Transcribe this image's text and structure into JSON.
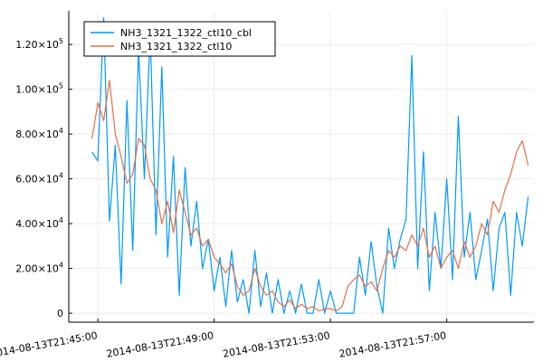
{
  "chart_data": {
    "type": "line",
    "title": "",
    "xlabel": "",
    "ylabel": "",
    "x_axis": {
      "type": "datetime",
      "min": "2014-08-13T21:44:00",
      "max": "2014-08-13T22:00:00",
      "ticks": [
        {
          "value": "2014-08-13T21:45:00",
          "label": "2014-08-13T21:45:00"
        },
        {
          "value": "2014-08-13T21:49:00",
          "label": "2014-08-13T21:49:00"
        },
        {
          "value": "2014-08-13T21:53:00",
          "label": "2014-08-13T21:53:00"
        },
        {
          "value": "2014-08-13T21:57:00",
          "label": "2014-08-13T21:57:00"
        }
      ]
    },
    "y_axis": {
      "min": -4000,
      "max": 135000,
      "ticks": [
        {
          "value": 0,
          "label": "0"
        },
        {
          "value": 20000,
          "label": "2.00×10^4"
        },
        {
          "value": 40000,
          "label": "4.00×10^4"
        },
        {
          "value": 60000,
          "label": "6.00×10^4"
        },
        {
          "value": 80000,
          "label": "8.00×10^4"
        },
        {
          "value": 100000,
          "label": "1.00×10^5"
        },
        {
          "value": 120000,
          "label": "1.20×10^5"
        }
      ]
    },
    "grid": true,
    "legend_position": "top-left",
    "series": [
      {
        "name": "NH3_1321_1322_ctl10_cbl",
        "color": "#009AFA",
        "points": [
          [
            "2014-08-13T21:44:48",
            72000
          ],
          [
            "2014-08-13T21:45:00",
            68000
          ],
          [
            "2014-08-13T21:45:12",
            132000
          ],
          [
            "2014-08-13T21:45:24",
            41000
          ],
          [
            "2014-08-13T21:45:36",
            75000
          ],
          [
            "2014-08-13T21:45:48",
            13000
          ],
          [
            "2014-08-13T21:46:00",
            95000
          ],
          [
            "2014-08-13T21:46:12",
            28000
          ],
          [
            "2014-08-13T21:46:24",
            118000
          ],
          [
            "2014-08-13T21:46:36",
            60000
          ],
          [
            "2014-08-13T21:46:48",
            125000
          ],
          [
            "2014-08-13T21:47:00",
            35000
          ],
          [
            "2014-08-13T21:47:12",
            110000
          ],
          [
            "2014-08-13T21:47:24",
            25000
          ],
          [
            "2014-08-13T21:47:36",
            70000
          ],
          [
            "2014-08-13T21:47:48",
            8000
          ],
          [
            "2014-08-13T21:48:00",
            65000
          ],
          [
            "2014-08-13T21:48:12",
            30000
          ],
          [
            "2014-08-13T21:48:24",
            50000
          ],
          [
            "2014-08-13T21:48:36",
            20000
          ],
          [
            "2014-08-13T21:48:48",
            33000
          ],
          [
            "2014-08-13T21:49:00",
            10000
          ],
          [
            "2014-08-13T21:49:12",
            25000
          ],
          [
            "2014-08-13T21:49:24",
            3000
          ],
          [
            "2014-08-13T21:49:36",
            28000
          ],
          [
            "2014-08-13T21:49:48",
            5000
          ],
          [
            "2014-08-13T21:50:00",
            15000
          ],
          [
            "2014-08-13T21:50:12",
            0
          ],
          [
            "2014-08-13T21:50:24",
            28000
          ],
          [
            "2014-08-13T21:50:36",
            3000
          ],
          [
            "2014-08-13T21:50:48",
            18000
          ],
          [
            "2014-08-13T21:51:00",
            0
          ],
          [
            "2014-08-13T21:51:12",
            15000
          ],
          [
            "2014-08-13T21:51:24",
            0
          ],
          [
            "2014-08-13T21:51:36",
            10000
          ],
          [
            "2014-08-13T21:51:48",
            0
          ],
          [
            "2014-08-13T21:52:00",
            13000
          ],
          [
            "2014-08-13T21:52:12",
            0
          ],
          [
            "2014-08-13T21:52:24",
            0
          ],
          [
            "2014-08-13T21:52:36",
            15000
          ],
          [
            "2014-08-13T21:52:48",
            0
          ],
          [
            "2014-08-13T21:53:00",
            10000
          ],
          [
            "2014-08-13T21:53:12",
            0
          ],
          [
            "2014-08-13T21:53:24",
            0
          ],
          [
            "2014-08-13T21:53:36",
            0
          ],
          [
            "2014-08-13T21:53:48",
            0
          ],
          [
            "2014-08-13T21:54:00",
            25000
          ],
          [
            "2014-08-13T21:54:12",
            8000
          ],
          [
            "2014-08-13T21:54:24",
            32000
          ],
          [
            "2014-08-13T21:54:36",
            12000
          ],
          [
            "2014-08-13T21:54:48",
            0
          ],
          [
            "2014-08-13T21:55:00",
            38000
          ],
          [
            "2014-08-13T21:55:12",
            20000
          ],
          [
            "2014-08-13T21:55:24",
            33000
          ],
          [
            "2014-08-13T21:55:36",
            42000
          ],
          [
            "2014-08-13T21:55:48",
            115000
          ],
          [
            "2014-08-13T21:56:00",
            20000
          ],
          [
            "2014-08-13T21:56:12",
            72000
          ],
          [
            "2014-08-13T21:56:24",
            10000
          ],
          [
            "2014-08-13T21:56:36",
            45000
          ],
          [
            "2014-08-13T21:56:48",
            20000
          ],
          [
            "2014-08-13T21:57:00",
            60000
          ],
          [
            "2014-08-13T21:57:12",
            15000
          ],
          [
            "2014-08-13T21:57:24",
            88000
          ],
          [
            "2014-08-13T21:57:36",
            25000
          ],
          [
            "2014-08-13T21:57:48",
            45000
          ],
          [
            "2014-08-13T21:58:00",
            15000
          ],
          [
            "2014-08-13T21:58:12",
            28000
          ],
          [
            "2014-08-13T21:58:24",
            42000
          ],
          [
            "2014-08-13T21:58:36",
            10000
          ],
          [
            "2014-08-13T21:58:48",
            38000
          ],
          [
            "2014-08-13T21:59:00",
            45000
          ],
          [
            "2014-08-13T21:59:12",
            8000
          ],
          [
            "2014-08-13T21:59:24",
            45000
          ],
          [
            "2014-08-13T21:59:36",
            30000
          ],
          [
            "2014-08-13T21:59:48",
            52000
          ]
        ]
      },
      {
        "name": "NH3_1321_1322_ctl10",
        "color": "#E26F46",
        "points": [
          [
            "2014-08-13T21:44:48",
            78000
          ],
          [
            "2014-08-13T21:45:00",
            94000
          ],
          [
            "2014-08-13T21:45:12",
            86000
          ],
          [
            "2014-08-13T21:45:24",
            104000
          ],
          [
            "2014-08-13T21:45:36",
            80000
          ],
          [
            "2014-08-13T21:45:48",
            70000
          ],
          [
            "2014-08-13T21:46:00",
            58000
          ],
          [
            "2014-08-13T21:46:12",
            62000
          ],
          [
            "2014-08-13T21:46:24",
            78000
          ],
          [
            "2014-08-13T21:46:36",
            75000
          ],
          [
            "2014-08-13T21:46:48",
            60000
          ],
          [
            "2014-08-13T21:47:00",
            55000
          ],
          [
            "2014-08-13T21:47:12",
            40000
          ],
          [
            "2014-08-13T21:47:24",
            50000
          ],
          [
            "2014-08-13T21:47:36",
            36000
          ],
          [
            "2014-08-13T21:47:48",
            55000
          ],
          [
            "2014-08-13T21:48:00",
            45000
          ],
          [
            "2014-08-13T21:48:12",
            35000
          ],
          [
            "2014-08-13T21:48:24",
            38000
          ],
          [
            "2014-08-13T21:48:36",
            30000
          ],
          [
            "2014-08-13T21:48:48",
            33000
          ],
          [
            "2014-08-13T21:49:00",
            25000
          ],
          [
            "2014-08-13T21:49:12",
            22000
          ],
          [
            "2014-08-13T21:49:24",
            18000
          ],
          [
            "2014-08-13T21:49:36",
            22000
          ],
          [
            "2014-08-13T21:49:48",
            12000
          ],
          [
            "2014-08-13T21:50:00",
            8000
          ],
          [
            "2014-08-13T21:50:12",
            10000
          ],
          [
            "2014-08-13T21:50:24",
            20000
          ],
          [
            "2014-08-13T21:50:36",
            12000
          ],
          [
            "2014-08-13T21:50:48",
            8000
          ],
          [
            "2014-08-13T21:51:00",
            10000
          ],
          [
            "2014-08-13T21:51:12",
            5000
          ],
          [
            "2014-08-13T21:51:24",
            3000
          ],
          [
            "2014-08-13T21:51:36",
            6000
          ],
          [
            "2014-08-13T21:51:48",
            2000
          ],
          [
            "2014-08-13T21:52:00",
            4000
          ],
          [
            "2014-08-13T21:52:12",
            2000
          ],
          [
            "2014-08-13T21:52:24",
            3000
          ],
          [
            "2014-08-13T21:52:36",
            1000
          ],
          [
            "2014-08-13T21:52:48",
            2000
          ],
          [
            "2014-08-13T21:53:00",
            2000
          ],
          [
            "2014-08-13T21:53:12",
            1000
          ],
          [
            "2014-08-13T21:53:24",
            3000
          ],
          [
            "2014-08-13T21:53:36",
            12000
          ],
          [
            "2014-08-13T21:53:48",
            15000
          ],
          [
            "2014-08-13T21:54:00",
            17000
          ],
          [
            "2014-08-13T21:54:12",
            12000
          ],
          [
            "2014-08-13T21:54:24",
            14000
          ],
          [
            "2014-08-13T21:54:36",
            10000
          ],
          [
            "2014-08-13T21:54:48",
            20000
          ],
          [
            "2014-08-13T21:55:00",
            28000
          ],
          [
            "2014-08-13T21:55:12",
            25000
          ],
          [
            "2014-08-13T21:55:24",
            30000
          ],
          [
            "2014-08-13T21:55:36",
            28000
          ],
          [
            "2014-08-13T21:55:48",
            35000
          ],
          [
            "2014-08-13T21:56:00",
            30000
          ],
          [
            "2014-08-13T21:56:12",
            38000
          ],
          [
            "2014-08-13T21:56:24",
            25000
          ],
          [
            "2014-08-13T21:56:36",
            30000
          ],
          [
            "2014-08-13T21:56:48",
            20000
          ],
          [
            "2014-08-13T21:57:00",
            25000
          ],
          [
            "2014-08-13T21:57:12",
            28000
          ],
          [
            "2014-08-13T21:57:24",
            20000
          ],
          [
            "2014-08-13T21:57:36",
            32000
          ],
          [
            "2014-08-13T21:57:48",
            25000
          ],
          [
            "2014-08-13T21:58:00",
            30000
          ],
          [
            "2014-08-13T21:58:12",
            40000
          ],
          [
            "2014-08-13T21:58:24",
            35000
          ],
          [
            "2014-08-13T21:58:36",
            50000
          ],
          [
            "2014-08-13T21:58:48",
            45000
          ],
          [
            "2014-08-13T21:59:00",
            55000
          ],
          [
            "2014-08-13T21:59:12",
            62000
          ],
          [
            "2014-08-13T21:59:24",
            72000
          ],
          [
            "2014-08-13T21:59:36",
            77000
          ],
          [
            "2014-08-13T21:59:48",
            66000
          ]
        ]
      }
    ]
  }
}
